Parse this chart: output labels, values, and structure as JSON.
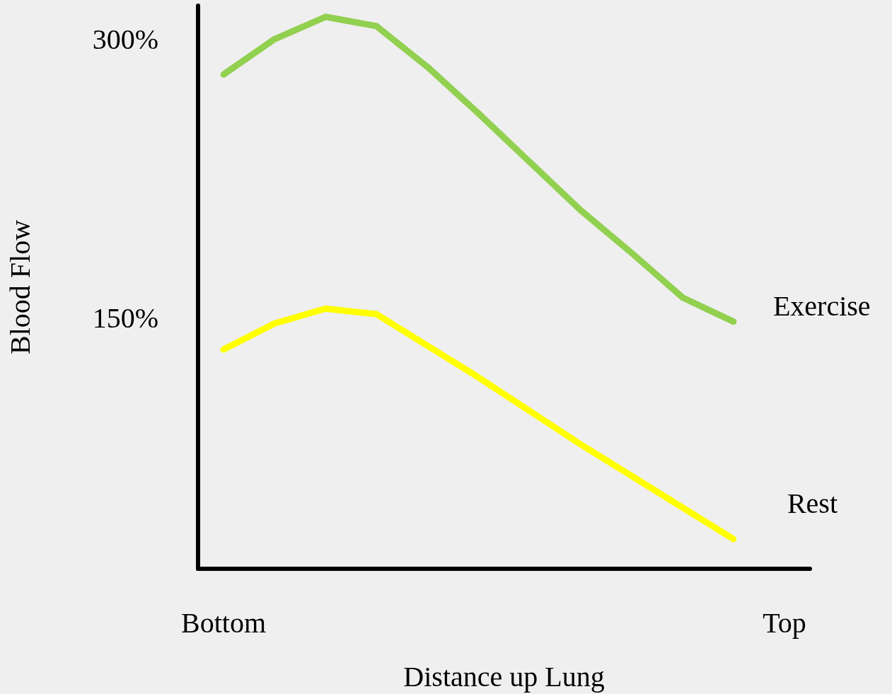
{
  "chart_data": {
    "type": "line",
    "xlabel": "Distance up Lung",
    "ylabel": "Blood Flow",
    "categories": [
      "Bottom",
      null,
      null,
      null,
      null,
      null,
      null,
      null,
      null,
      null,
      null,
      "Top"
    ],
    "ylim": [
      15,
      318
    ],
    "yticks": [
      {
        "value": 150,
        "label": "150%"
      },
      {
        "value": 300,
        "label": "300%"
      }
    ],
    "grid": false,
    "legend": false,
    "marker": "none",
    "line_style": "solid",
    "series": [
      {
        "name": "Exercise",
        "color": "#92d050",
        "values": [
          281,
          300,
          312,
          307,
          285,
          260,
          234,
          208,
          185,
          161,
          148,
          null
        ]
      },
      {
        "name": "Rest",
        "color": "#ffff00",
        "values": [
          133,
          147,
          155,
          152,
          135,
          118,
          100,
          82,
          65,
          48,
          31,
          null
        ]
      }
    ]
  }
}
